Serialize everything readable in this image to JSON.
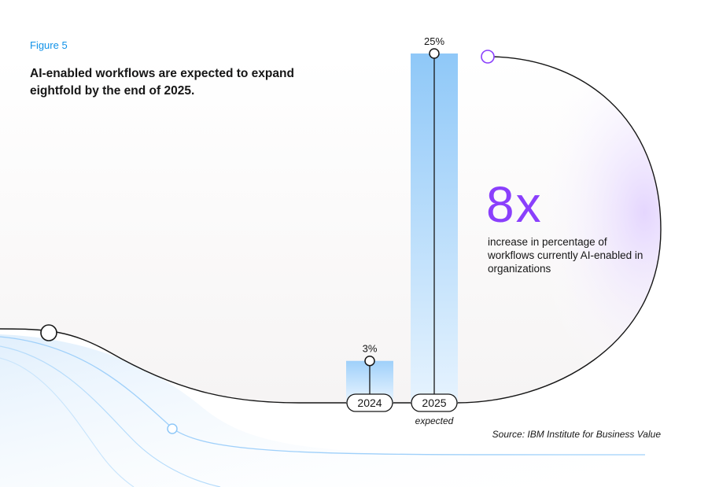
{
  "figure_label": "Figure 5",
  "title": "AI-enabled workflows are expected to expand eightfold by the end of 2025.",
  "highlight": {
    "multiplier": "8x",
    "description": "increase in percentage of workflows currently AI-enabled in organizations"
  },
  "source": "Source: IBM Institute for Business Value",
  "colors": {
    "accent": "#8a3ffc",
    "bar": "#8fc8f8",
    "label": "#1192e8",
    "text": "#161616"
  },
  "chart_data": {
    "type": "bar",
    "categories": [
      "2024",
      "2025"
    ],
    "category_notes": [
      "",
      "expected"
    ],
    "values": [
      3,
      25
    ],
    "value_labels": [
      "3%",
      "25%"
    ],
    "unit": "%",
    "ylim": [
      0,
      25
    ],
    "grid": false,
    "legend": "none"
  }
}
